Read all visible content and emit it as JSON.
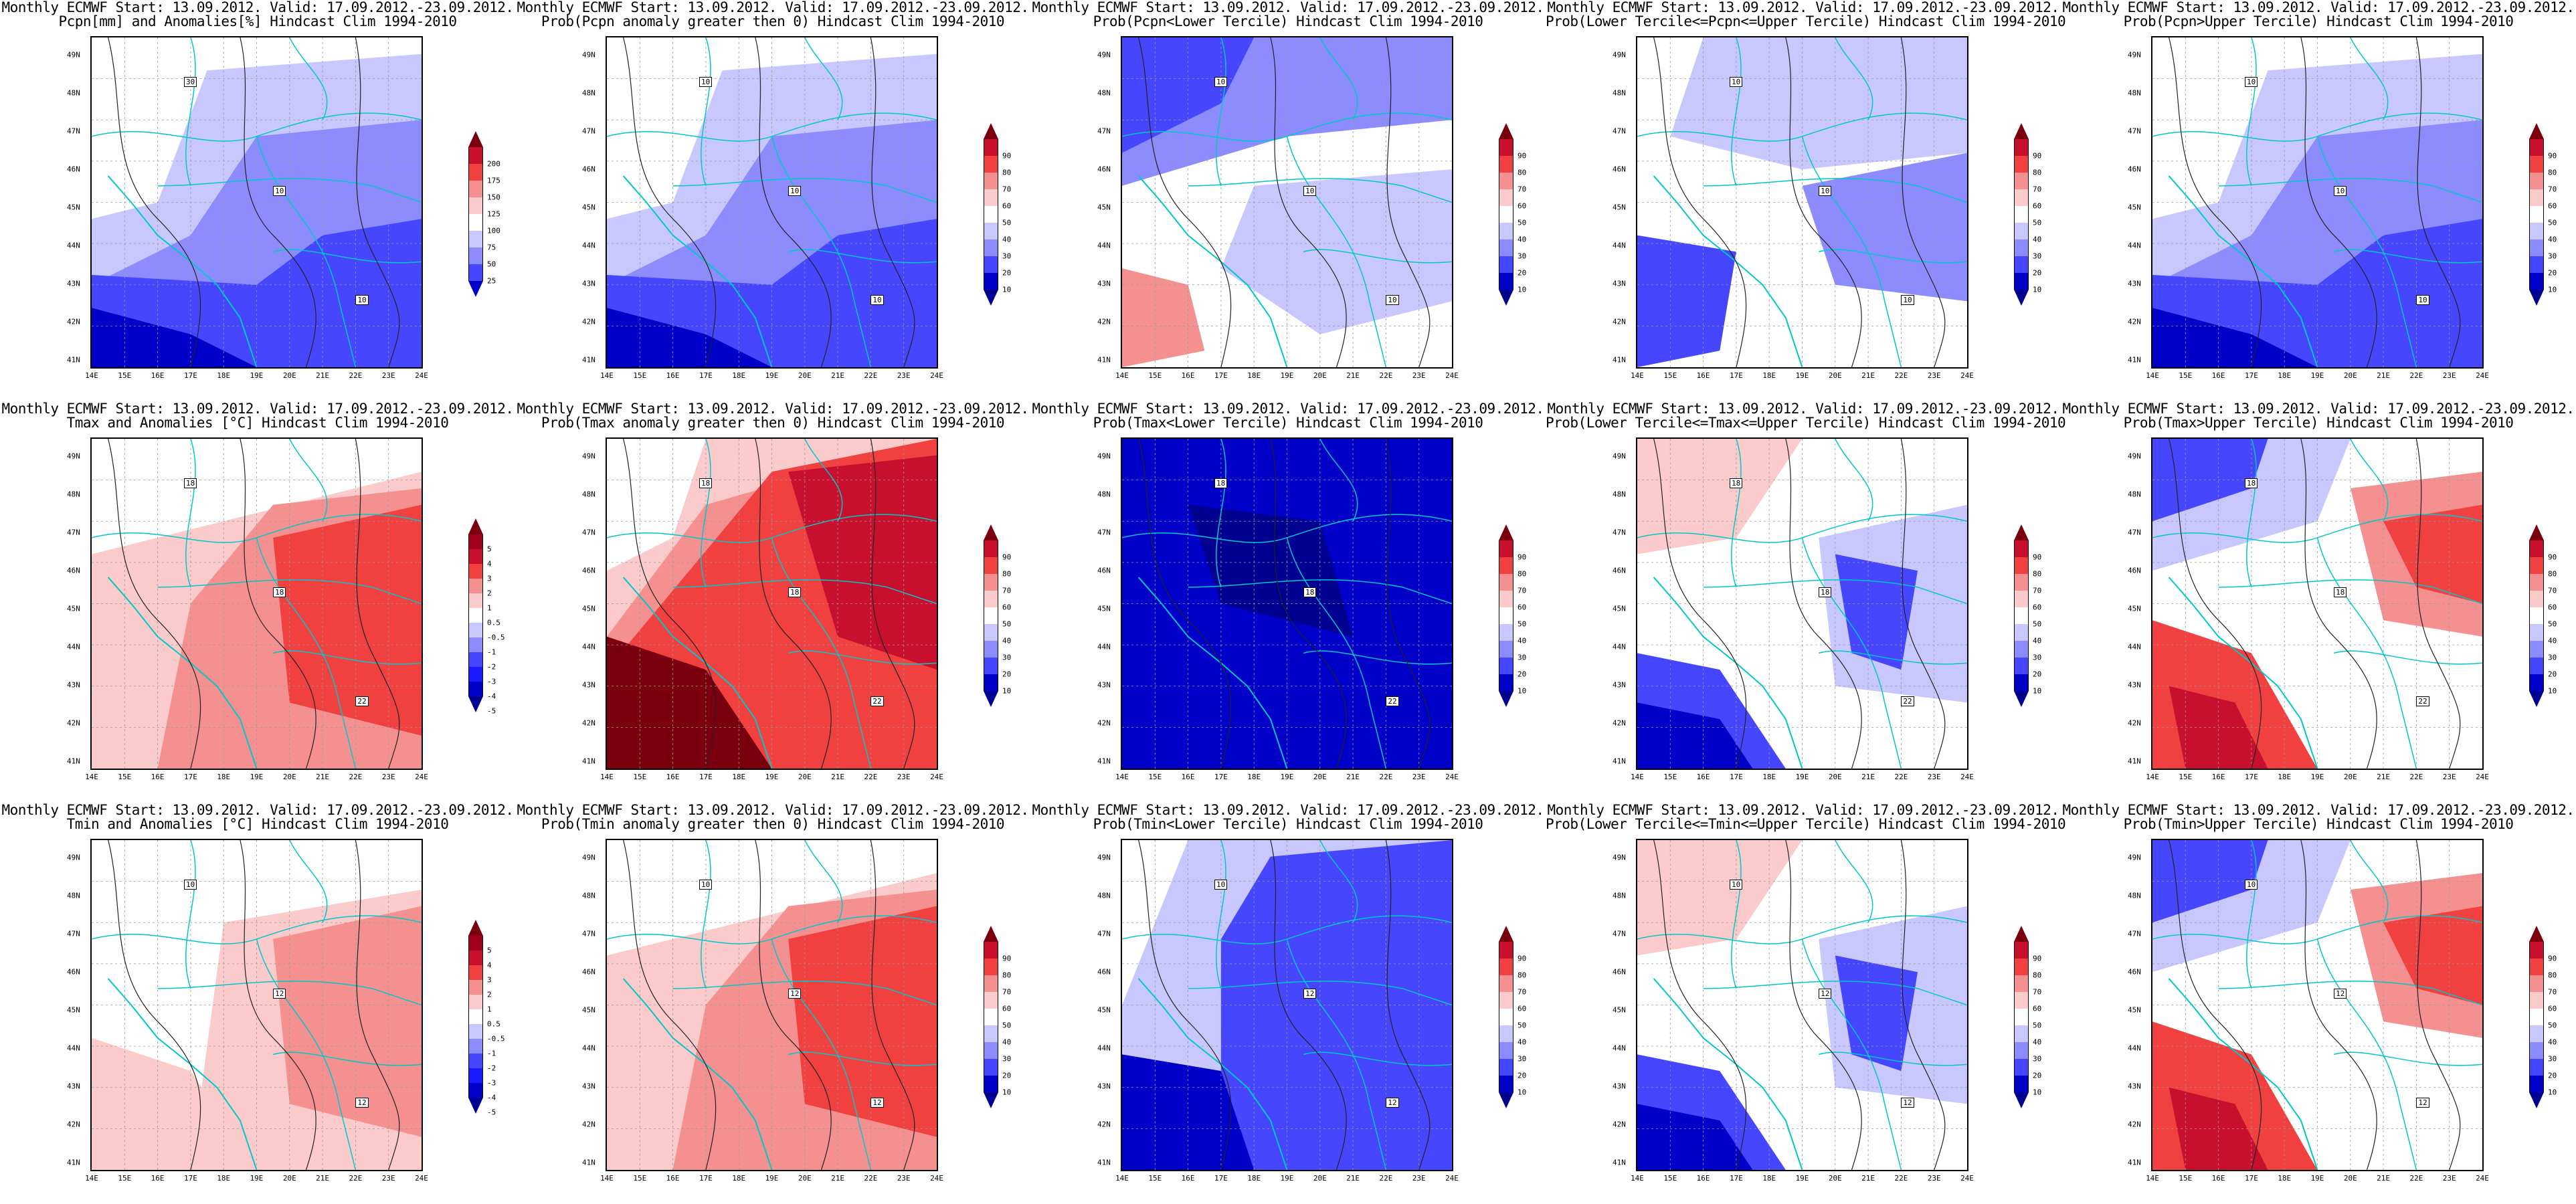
{
  "header_line": "Monthly ECMWF Start: 13.09.2012. Valid: 17.09.2012.-23.09.2012.",
  "lon_ticks": [
    "14E",
    "15E",
    "16E",
    "17E",
    "18E",
    "19E",
    "20E",
    "21E",
    "22E",
    "23E",
    "24E"
  ],
  "lat_ticks": [
    "49N",
    "48N",
    "47N",
    "46N",
    "45N",
    "44N",
    "43N",
    "42N",
    "41N"
  ],
  "scales": {
    "pcpn": {
      "labels": [
        "200",
        "175",
        "150",
        "125",
        "100",
        "75",
        "50",
        "25"
      ],
      "colors": [
        "#7a0010",
        "#c8102e",
        "#f04040",
        "#f59090",
        "#fbcaca",
        "#ffffff",
        "#c8c8ff",
        "#8c8cff",
        "#4646ff",
        "#0000c8"
      ]
    },
    "prob": {
      "labels": [
        "90",
        "80",
        "70",
        "60",
        "50",
        "40",
        "30",
        "20",
        "10"
      ],
      "colors": [
        "#7a0010",
        "#c8102e",
        "#f04040",
        "#f59090",
        "#fbcaca",
        "#ffffff",
        "#c8c8ff",
        "#8c8cff",
        "#4646ff",
        "#0000c8",
        "#000090"
      ]
    },
    "temp": {
      "labels": [
        "5",
        "4",
        "3",
        "2",
        "1",
        "0.5",
        "-0.5",
        "-1",
        "-2",
        "-3",
        "-4",
        "-5"
      ],
      "colors": [
        "#7a0010",
        "#a0001c",
        "#c8102e",
        "#f04040",
        "#f59090",
        "#fbcaca",
        "#ffffff",
        "#c8c8ff",
        "#8c8cff",
        "#4646ff",
        "#1a1aff",
        "#0000c8",
        "#000090"
      ]
    }
  },
  "panels": [
    {
      "id": "r1c1",
      "title2": "Pcpn[mm] and Anomalies[%] Hindcast Clim 1994-2010",
      "scale": "pcpn",
      "theme": "blue",
      "labels": [
        "30",
        "10",
        "10"
      ]
    },
    {
      "id": "r1c2",
      "title2": "Prob(Pcpn anomaly greater then 0) Hindcast Clim 1994-2010",
      "scale": "prob",
      "theme": "blue",
      "labels": [
        "10",
        "10",
        "10"
      ]
    },
    {
      "id": "r1c3",
      "title2": "Prob(Pcpn<Lower Tercile) Hindcast Clim 1994-2010",
      "scale": "prob",
      "theme": "mixblue",
      "labels": [
        "10",
        "10",
        "10"
      ]
    },
    {
      "id": "r1c4",
      "title2": "Prob(Lower Tercile<=Pcpn<=Upper Tercile) Hindcast Clim 1994-2010",
      "scale": "prob",
      "theme": "paleblue",
      "labels": [
        "10",
        "10",
        "10"
      ]
    },
    {
      "id": "r1c5",
      "title2": "Prob(Pcpn>Upper Tercile) Hindcast Clim 1994-2010",
      "scale": "prob",
      "theme": "blue",
      "labels": [
        "10",
        "10",
        "10"
      ]
    },
    {
      "id": "r2c1",
      "title2": "Tmax and Anomalies [°C] Hindcast Clim 1994-2010",
      "scale": "temp",
      "theme": "red",
      "labels": [
        "18",
        "18",
        "22"
      ]
    },
    {
      "id": "r2c2",
      "title2": "Prob(Tmax anomaly greater then 0) Hindcast Clim 1994-2010",
      "scale": "prob",
      "theme": "deepred",
      "labels": [
        "18",
        "18",
        "22"
      ]
    },
    {
      "id": "r2c3",
      "title2": "Prob(Tmax<Lower Tercile) Hindcast Clim 1994-2010",
      "scale": "prob",
      "theme": "navy",
      "labels": [
        "18",
        "18",
        "22"
      ]
    },
    {
      "id": "r2c4",
      "title2": "Prob(Lower Tercile<=Tmax<=Upper Tercile) Hindcast Clim 1994-2010",
      "scale": "prob",
      "theme": "redblue",
      "labels": [
        "18",
        "18",
        "22"
      ]
    },
    {
      "id": "r2c5",
      "title2": "Prob(Tmax>Upper Tercile) Hindcast Clim 1994-2010",
      "scale": "prob",
      "theme": "bluered",
      "labels": [
        "18",
        "18",
        "22"
      ]
    },
    {
      "id": "r3c1",
      "title2": "Tmin and Anomalies [°C] Hindcast Clim 1994-2010",
      "scale": "temp",
      "theme": "palered",
      "labels": [
        "10",
        "12",
        "12"
      ]
    },
    {
      "id": "r3c2",
      "title2": "Prob(Tmin anomaly greater then 0) Hindcast Clim 1994-2010",
      "scale": "prob",
      "theme": "red",
      "labels": [
        "10",
        "12",
        "12"
      ]
    },
    {
      "id": "r3c3",
      "title2": "Prob(Tmin<Lower Tercile) Hindcast Clim 1994-2010",
      "scale": "prob",
      "theme": "bluemix",
      "labels": [
        "10",
        "12",
        "12"
      ]
    },
    {
      "id": "r3c4",
      "title2": "Prob(Lower Tercile<=Tmin<=Upper Tercile) Hindcast Clim 1994-2010",
      "scale": "prob",
      "theme": "redblue",
      "labels": [
        "10",
        "12",
        "12"
      ]
    },
    {
      "id": "r3c5",
      "title2": "Prob(Tmin>Upper Tercile) Hindcast Clim 1994-2010",
      "scale": "prob",
      "theme": "bluered",
      "labels": [
        "10",
        "12",
        "12"
      ]
    }
  ]
}
